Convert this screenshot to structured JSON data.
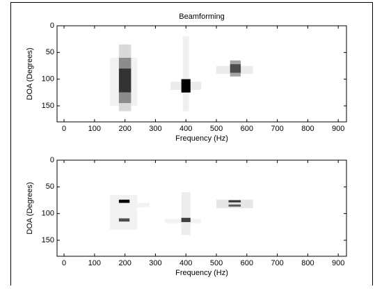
{
  "chart_data": [
    {
      "type": "heatmap",
      "title": "Beamforming",
      "xlabel": "Frequency (Hz)",
      "ylabel": "DOA (Degrees)",
      "xlim": [
        -23,
        927
      ],
      "ylim": [
        0,
        180
      ],
      "xticks": [
        0,
        100,
        200,
        300,
        400,
        500,
        600,
        700,
        800,
        900
      ],
      "yticks": [
        0,
        50,
        100,
        150
      ],
      "cells": [
        {
          "x": [
            150,
            240
          ],
          "y": [
            60,
            150
          ],
          "value": 0.05
        },
        {
          "x": [
            180,
            220
          ],
          "y": [
            35,
            60
          ],
          "value": 0.15
        },
        {
          "x": [
            180,
            220
          ],
          "y": [
            60,
            80
          ],
          "value": 0.45
        },
        {
          "x": [
            180,
            220
          ],
          "y": [
            80,
            125
          ],
          "value": 0.8
        },
        {
          "x": [
            180,
            220
          ],
          "y": [
            125,
            145
          ],
          "value": 0.45
        },
        {
          "x": [
            180,
            220
          ],
          "y": [
            145,
            160
          ],
          "value": 0.15
        },
        {
          "x": [
            390,
            410
          ],
          "y": [
            20,
            160
          ],
          "value": 0.06
        },
        {
          "x": [
            350,
            450
          ],
          "y": [
            105,
            120
          ],
          "value": 0.08
        },
        {
          "x": [
            385,
            415
          ],
          "y": [
            100,
            125
          ],
          "value": 1.0
        },
        {
          "x": [
            500,
            620
          ],
          "y": [
            75,
            90
          ],
          "value": 0.08
        },
        {
          "x": [
            545,
            580
          ],
          "y": [
            65,
            95
          ],
          "value": 0.35
        },
        {
          "x": [
            545,
            580
          ],
          "y": [
            72,
            88
          ],
          "value": 0.7
        }
      ]
    },
    {
      "type": "heatmap",
      "xlabel": "Frequency (Hz)",
      "ylabel": "DOA (Degrees)",
      "xlim": [
        -23,
        927
      ],
      "ylim": [
        0,
        180
      ],
      "xticks": [
        0,
        100,
        200,
        300,
        400,
        500,
        600,
        700,
        800,
        900
      ],
      "yticks": [
        0,
        50,
        100,
        150
      ],
      "cells": [
        {
          "x": [
            150,
            240
          ],
          "y": [
            65,
            130
          ],
          "value": 0.05
        },
        {
          "x": [
            240,
            280
          ],
          "y": [
            80,
            88
          ],
          "value": 0.05
        },
        {
          "x": [
            180,
            215
          ],
          "y": [
            74,
            80
          ],
          "value": 1.0
        },
        {
          "x": [
            180,
            215
          ],
          "y": [
            109,
            115
          ],
          "value": 0.7
        },
        {
          "x": [
            385,
            415
          ],
          "y": [
            60,
            140
          ],
          "value": 0.07
        },
        {
          "x": [
            330,
            450
          ],
          "y": [
            110,
            118
          ],
          "value": 0.05
        },
        {
          "x": [
            385,
            415
          ],
          "y": [
            108,
            116
          ],
          "value": 0.75
        },
        {
          "x": [
            500,
            620
          ],
          "y": [
            74,
            90
          ],
          "value": 0.1
        },
        {
          "x": [
            540,
            580
          ],
          "y": [
            75,
            79
          ],
          "value": 0.8
        },
        {
          "x": [
            540,
            580
          ],
          "y": [
            83,
            87
          ],
          "value": 0.65
        }
      ]
    }
  ]
}
